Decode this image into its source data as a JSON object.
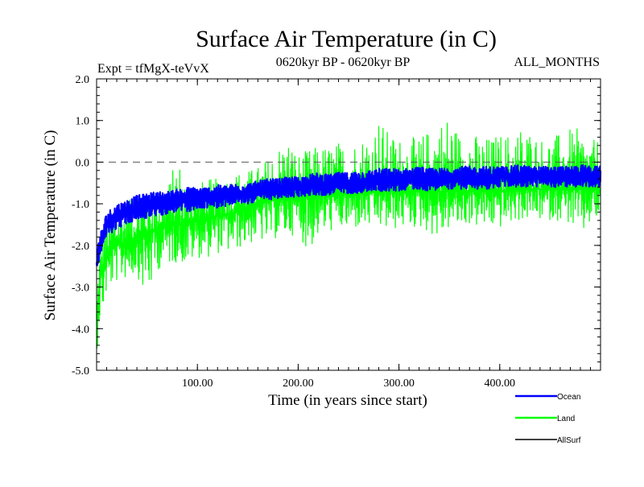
{
  "chart_data": {
    "type": "line",
    "title": "Surface Air Temperature (in C)",
    "expt_label": "Expt = tfMgX-teVvX",
    "period_label": "0620kyr BP - 0620kyr BP",
    "months_label": "ALL_MONTHS",
    "xlabel": "Time (in years since start)",
    "ylabel": "Surface Air Temperature (in C)",
    "xlim": [
      0,
      500
    ],
    "ylim": [
      -5.0,
      2.0
    ],
    "x_ticks": [
      100,
      200,
      300,
      400
    ],
    "x_tick_labels": [
      "100.00",
      "200.00",
      "300.00",
      "400.00"
    ],
    "y_ticks": [
      -5,
      -4,
      -3,
      -2,
      -1,
      0,
      1,
      2
    ],
    "y_tick_labels": [
      "-5.0",
      "-4.0",
      "-3.0",
      "-2.0",
      "-1.0",
      "0.0",
      "1.0",
      "2.0"
    ],
    "reference_line": {
      "y": 0.0,
      "style": "dashed"
    },
    "legend_position": "bottom-right",
    "series": [
      {
        "name": "Land",
        "color": "#00ff00",
        "x": [
          0,
          2,
          5,
          10,
          15,
          20,
          30,
          40,
          50,
          60,
          70,
          80,
          90,
          100,
          110,
          120,
          130,
          140,
          150,
          160,
          170,
          180,
          190,
          200,
          210,
          220,
          230,
          240,
          250,
          260,
          270,
          280,
          290,
          300,
          310,
          320,
          330,
          340,
          350,
          360,
          370,
          380,
          390,
          400,
          410,
          420,
          430,
          440,
          450,
          460,
          470,
          480,
          490,
          500
        ],
        "y": [
          -4.7,
          -3.2,
          -2.6,
          -2.3,
          -2.1,
          -2.0,
          -1.9,
          -1.8,
          -1.7,
          -1.6,
          -1.55,
          -1.5,
          -1.45,
          -1.4,
          -1.35,
          -1.3,
          -1.25,
          -1.2,
          -1.1,
          -1.0,
          -0.95,
          -0.9,
          -0.9,
          -0.85,
          -0.85,
          -0.8,
          -0.8,
          -0.8,
          -0.75,
          -0.75,
          -0.75,
          -0.7,
          -0.7,
          -0.7,
          -0.7,
          -0.7,
          -0.7,
          -0.7,
          -0.7,
          -0.7,
          -0.7,
          -0.7,
          -0.7,
          -0.7,
          -0.7,
          -0.7,
          -0.65,
          -0.65,
          -0.65,
          -0.65,
          -0.65,
          -0.65,
          -0.65,
          -0.65
        ],
        "envelope_low": [
          -4.8,
          -4.0,
          -3.8,
          -3.2,
          -3.0,
          -2.9,
          -2.8,
          -2.7,
          -3.4,
          -2.6,
          -2.5,
          -2.4,
          -2.5,
          -2.3,
          -2.3,
          -2.2,
          -2.2,
          -2.1,
          -2.0,
          -1.9,
          -2.0,
          -1.8,
          -1.8,
          -1.7,
          -2.2,
          -1.8,
          -1.7,
          -1.6,
          -1.7,
          -1.6,
          -1.6,
          -1.6,
          -1.7,
          -1.6,
          -1.6,
          -1.6,
          -1.7,
          -1.9,
          -1.6,
          -1.6,
          -1.5,
          -1.6,
          -1.6,
          -1.6,
          -1.5,
          -1.4,
          -1.4,
          -1.4,
          -1.4,
          -1.4,
          -1.5,
          -1.9,
          -1.5,
          -1.4
        ],
        "envelope_high": [
          -2.6,
          -2.2,
          -1.8,
          -1.3,
          -1.2,
          -1.1,
          -0.9,
          -0.9,
          -0.8,
          -0.7,
          -0.6,
          0.2,
          -0.5,
          -0.5,
          -0.4,
          -0.4,
          -0.3,
          -0.2,
          -0.2,
          -0.1,
          0.1,
          0.4,
          0.6,
          0.2,
          0.3,
          0.4,
          0.4,
          0.5,
          0.4,
          0.6,
          0.7,
          1.1,
          0.7,
          0.6,
          0.6,
          0.6,
          0.8,
          1.0,
          1.2,
          0.7,
          0.8,
          0.6,
          0.6,
          0.7,
          0.7,
          0.9,
          0.8,
          0.6,
          0.6,
          0.7,
          0.8,
          0.8,
          0.5,
          0.6
        ]
      },
      {
        "name": "Ocean",
        "color": "#0000ff",
        "x": [
          0,
          2,
          5,
          10,
          15,
          20,
          30,
          40,
          50,
          60,
          70,
          80,
          90,
          100,
          110,
          120,
          130,
          140,
          150,
          160,
          170,
          180,
          190,
          200,
          210,
          220,
          230,
          240,
          250,
          260,
          270,
          280,
          290,
          300,
          310,
          320,
          330,
          340,
          350,
          360,
          370,
          380,
          390,
          400,
          410,
          420,
          430,
          440,
          450,
          460,
          470,
          480,
          490,
          500
        ],
        "y": [
          -2.5,
          -2.1,
          -1.9,
          -1.5,
          -1.4,
          -1.3,
          -1.2,
          -1.1,
          -1.05,
          -1.0,
          -0.95,
          -0.9,
          -0.9,
          -0.85,
          -0.85,
          -0.8,
          -0.8,
          -0.75,
          -0.75,
          -0.7,
          -0.65,
          -0.65,
          -0.6,
          -0.6,
          -0.55,
          -0.55,
          -0.55,
          -0.5,
          -0.5,
          -0.5,
          -0.45,
          -0.45,
          -0.45,
          -0.45,
          -0.4,
          -0.4,
          -0.4,
          -0.4,
          -0.4,
          -0.4,
          -0.4,
          -0.4,
          -0.4,
          -0.35,
          -0.35,
          -0.35,
          -0.35,
          -0.35,
          -0.35,
          -0.35,
          -0.35,
          -0.35,
          -0.35,
          -0.35
        ],
        "envelope_low": [
          -2.6,
          -2.4,
          -2.1,
          -1.8,
          -1.7,
          -1.6,
          -1.5,
          -1.4,
          -1.35,
          -1.3,
          -1.25,
          -1.2,
          -1.2,
          -1.15,
          -1.1,
          -1.1,
          -1.05,
          -1.0,
          -1.0,
          -0.95,
          -0.9,
          -0.9,
          -0.85,
          -0.85,
          -0.8,
          -0.8,
          -0.8,
          -0.75,
          -0.75,
          -0.75,
          -0.7,
          -0.7,
          -0.7,
          -0.7,
          -0.65,
          -0.65,
          -0.7,
          -0.65,
          -0.65,
          -0.65,
          -0.65,
          -0.65,
          -0.65,
          -0.6,
          -0.6,
          -0.6,
          -0.6,
          -0.6,
          -0.6,
          -0.6,
          -0.6,
          -0.6,
          -0.6,
          -0.6
        ],
        "envelope_high": [
          -2.3,
          -1.8,
          -1.6,
          -1.2,
          -1.1,
          -1.0,
          -0.9,
          -0.8,
          -0.75,
          -0.7,
          -0.7,
          -0.65,
          -0.6,
          -0.6,
          -0.6,
          -0.55,
          -0.55,
          -0.5,
          -0.5,
          -0.45,
          -0.4,
          -0.4,
          -0.35,
          -0.35,
          -0.3,
          -0.25,
          -0.3,
          -0.25,
          -0.25,
          -0.2,
          -0.2,
          -0.15,
          -0.15,
          -0.15,
          -0.15,
          -0.1,
          -0.15,
          -0.15,
          -0.1,
          -0.1,
          -0.1,
          -0.1,
          -0.1,
          -0.1,
          -0.1,
          -0.05,
          -0.1,
          -0.1,
          -0.1,
          -0.1,
          -0.1,
          -0.05,
          -0.1,
          -0.1
        ]
      },
      {
        "name": "AllSurf",
        "color": "#000000",
        "x": [],
        "y": []
      }
    ]
  }
}
